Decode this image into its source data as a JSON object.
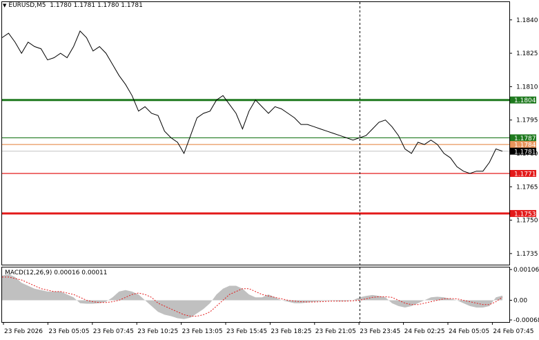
{
  "header": {
    "symbol": "EURUSD,M5",
    "ohlc": "1.1780 1.1781 1.1780 1.1781"
  },
  "price_axis": {
    "ticks": [
      "1.1840",
      "1.1825",
      "1.1810",
      "1.1795",
      "1.1780",
      "1.1765",
      "1.1750",
      "1.1735"
    ]
  },
  "levels": [
    {
      "label": "1.1804",
      "price": 1.1804,
      "color": "#1f7a1f",
      "thick": true
    },
    {
      "label": "1.1787",
      "price": 1.1787,
      "color": "#1f7a1f",
      "thick": false
    },
    {
      "label": "1.1784",
      "price": 1.1784,
      "color": "#e8955c",
      "thick": false
    },
    {
      "label": "1.1781",
      "price": 1.1781,
      "color": "#cfcfcf",
      "thick": false,
      "current": true
    },
    {
      "label": "1.1771",
      "price": 1.1771,
      "color": "#e31a1a",
      "thick": false
    },
    {
      "label": "1.1753",
      "price": 1.1753,
      "color": "#e31a1a",
      "thick": true
    }
  ],
  "time_axis": {
    "labels": [
      "23 Feb 2026",
      "23 Feb 05:05",
      "23 Feb 07:45",
      "23 Feb 10:25",
      "23 Feb 13:05",
      "23 Feb 15:45",
      "23 Feb 18:25",
      "23 Feb 21:05",
      "23 Feb 23:45",
      "24 Feb 02:25",
      "24 Feb 05:05",
      "24 Feb 07:45"
    ]
  },
  "macd": {
    "label": "MACD(12,26,9) 0.00016 0.00011",
    "ticks": [
      "0.00106",
      "0.00",
      "-0.00068"
    ]
  },
  "colors": {
    "price_line": "#000000",
    "histogram": "#c0c0c0",
    "signal": "#e31a1a",
    "grid": "#000000",
    "crosshair": "#000000"
  },
  "chart_data": {
    "type": "line",
    "x_labels": [
      "23 Feb 2026",
      "23 Feb 05:05",
      "23 Feb 07:45",
      "23 Feb 10:25",
      "23 Feb 13:05",
      "23 Feb 15:45",
      "23 Feb 18:25",
      "23 Feb 21:05",
      "23 Feb 23:45",
      "24 Feb 02:25",
      "24 Feb 05:05",
      "24 Feb 07:45"
    ],
    "price": [
      1.1832,
      1.1834,
      1.183,
      1.1825,
      1.183,
      1.1828,
      1.1827,
      1.1822,
      1.1823,
      1.1825,
      1.1823,
      1.1828,
      1.1835,
      1.1832,
      1.1826,
      1.1828,
      1.1825,
      1.182,
      1.1815,
      1.1811,
      1.1806,
      1.1799,
      1.1801,
      1.1798,
      1.1797,
      1.179,
      1.1787,
      1.1785,
      1.178,
      1.1788,
      1.1796,
      1.1798,
      1.1799,
      1.1804,
      1.1806,
      1.1802,
      1.1798,
      1.1791,
      1.1799,
      1.1804,
      1.1801,
      1.1798,
      1.1801,
      1.18,
      1.1798,
      1.1796,
      1.1793,
      1.1793,
      1.1792,
      1.1791,
      1.179,
      1.1789,
      1.1788,
      1.1787,
      1.1786,
      1.1787,
      1.1788,
      1.1791,
      1.1794,
      1.1795,
      1.1792,
      1.1788,
      1.1782,
      1.178,
      1.1785,
      1.1784,
      1.1786,
      1.1784,
      1.178,
      1.1778,
      1.1774,
      1.1772,
      1.1771,
      1.1772,
      1.1772,
      1.1776,
      1.1782,
      1.1781
    ],
    "macd_hist": [
      0.00085,
      0.0009,
      0.0008,
      0.0006,
      0.0005,
      0.0004,
      0.00035,
      0.0003,
      0.0003,
      0.0003,
      0.0002,
      0.0001,
      -0.0001,
      -0.00012,
      -0.00012,
      -0.0001,
      -5e-05,
      0.0001,
      0.0003,
      0.00035,
      0.0003,
      0.0002,
      0.0,
      -0.0002,
      -0.0004,
      -0.0005,
      -0.00055,
      -0.00062,
      -0.00065,
      -0.0006,
      -0.00045,
      -0.0003,
      -0.0001,
      0.0002,
      0.0004,
      0.0005,
      0.0005,
      0.0004,
      0.0002,
      0.0001,
      0.0001,
      0.0002,
      0.0001,
      0.0,
      -5e-05,
      -0.0001,
      -0.0001,
      -8e-05,
      -5e-05,
      -3e-05,
      -2e-05,
      -2e-05,
      -4e-05,
      -3e-05,
      0.0,
      0.0001,
      0.00015,
      0.00018,
      0.00015,
      0.0001,
      -0.0001,
      -0.0002,
      -0.00025,
      -0.0002,
      -0.0001,
      0.0,
      0.0001,
      0.00012,
      0.0001,
      5e-05,
      0.0,
      -0.0001,
      -0.0002,
      -0.00025,
      -0.00025,
      -0.0002,
      0.0001,
      0.00016
    ],
    "macd_signal": [
      0.0008,
      0.0008,
      0.00075,
      0.0007,
      0.0006,
      0.0005,
      0.0004,
      0.00035,
      0.0003,
      0.0003,
      0.00025,
      0.0002,
      0.0001,
      0.0,
      -5e-05,
      -8e-05,
      -8e-05,
      -5e-05,
      0.0,
      0.0001,
      0.0002,
      0.00025,
      0.0002,
      0.0001,
      -0.0001,
      -0.0002,
      -0.0003,
      -0.0004,
      -0.0005,
      -0.00055,
      -0.00055,
      -0.0005,
      -0.0004,
      -0.0002,
      0.0,
      0.0002,
      0.0003,
      0.0004,
      0.0004,
      0.0003,
      0.0002,
      0.00015,
      0.0001,
      5e-05,
      0.0,
      -3e-05,
      -5e-05,
      -6e-05,
      -6e-05,
      -5e-05,
      -4e-05,
      -3e-05,
      -3e-05,
      -3e-05,
      -2e-05,
      0.0,
      5e-05,
      0.0001,
      0.00012,
      0.00012,
      0.0001,
      0.0,
      -0.0001,
      -0.00015,
      -0.00015,
      -0.0001,
      -5e-05,
      0.0,
      5e-05,
      6e-05,
      5e-05,
      0.0,
      -5e-05,
      -0.0001,
      -0.00015,
      -0.00015,
      -5e-05,
      0.00011
    ],
    "price_ylim": [
      1.173,
      1.1848
    ],
    "macd_ylim": [
      -0.00068,
      0.00106
    ]
  }
}
